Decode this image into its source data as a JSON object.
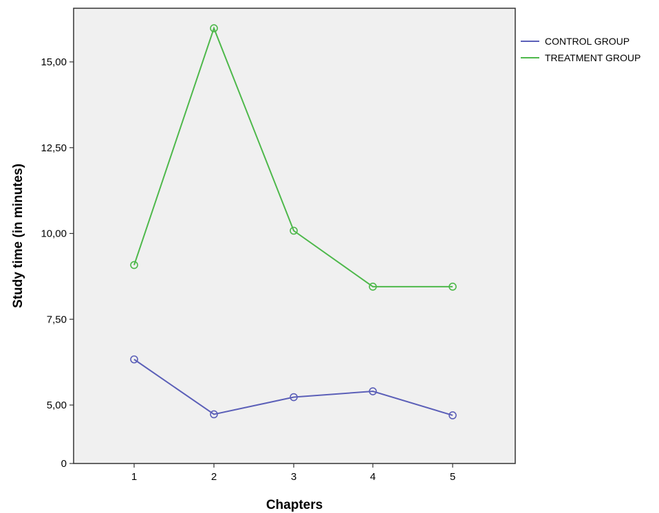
{
  "chart_data": {
    "type": "line",
    "xlabel": "Chapters",
    "ylabel": "Study time (in minutes)",
    "categories": [
      "1",
      "2",
      "3",
      "4",
      "5"
    ],
    "y_ticks": [
      {
        "value": 0,
        "label": "0"
      },
      {
        "value": 5,
        "label": "5,00"
      },
      {
        "value": 7.5,
        "label": "7,50"
      },
      {
        "value": 10,
        "label": "10,00"
      },
      {
        "value": 12.5,
        "label": "12,50"
      },
      {
        "value": 15,
        "label": "15,00"
      }
    ],
    "y_axis_break": {
      "from": 0,
      "to": 4.0
    },
    "ylim": [
      4.0,
      16.6
    ],
    "grid": false,
    "legend_position": "right",
    "plot_background": "#f0f0f0",
    "series": [
      {
        "name": "CONTROL GROUP",
        "color": "#5b5fb8",
        "values": [
          6.33,
          4.73,
          5.23,
          5.4,
          4.7
        ]
      },
      {
        "name": "TREATMENT GROUP",
        "color": "#4db84a",
        "values": [
          9.08,
          15.98,
          10.08,
          8.45,
          8.45
        ]
      }
    ]
  }
}
